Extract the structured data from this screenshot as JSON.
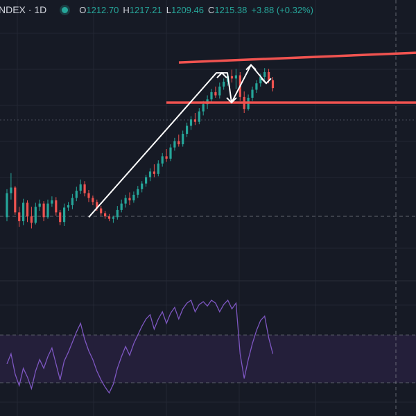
{
  "legend": {
    "symbol": "NDEX · 1D",
    "open_label": "O",
    "open": "1212.70",
    "high_label": "H",
    "high": "1217.21",
    "low_label": "L",
    "low": "1209.46",
    "close_label": "C",
    "close": "1215.38",
    "change": "+3.88 (+0.32%)"
  },
  "colors": {
    "background": "#161a25",
    "grid": "#232733",
    "up": "#26a69a",
    "down": "#ef5350",
    "trendline": "#ffffff",
    "levels": "#f05350",
    "oscillator": "#7e57c2",
    "oscillator_band": "#241f3a"
  },
  "chart_data": [
    {
      "type": "candlestick",
      "ohlc": [
        [
          1095,
          1130,
          1090,
          1125
        ],
        [
          1125,
          1150,
          1117,
          1132
        ],
        [
          1132,
          1134,
          1098,
          1101
        ],
        [
          1101,
          1108,
          1083,
          1090
        ],
        [
          1090,
          1118,
          1085,
          1113
        ],
        [
          1113,
          1116,
          1089,
          1096
        ],
        [
          1096,
          1108,
          1081,
          1088
        ],
        [
          1088,
          1113,
          1086,
          1108
        ],
        [
          1108,
          1117,
          1103,
          1112
        ],
        [
          1112,
          1115,
          1090,
          1095
        ],
        [
          1095,
          1117,
          1093,
          1112
        ],
        [
          1112,
          1121,
          1108,
          1116
        ],
        [
          1116,
          1120,
          1097,
          1101
        ],
        [
          1101,
          1104,
          1085,
          1089
        ],
        [
          1089,
          1112,
          1084,
          1107
        ],
        [
          1107,
          1114,
          1103,
          1110
        ],
        [
          1110,
          1124,
          1105,
          1119
        ],
        [
          1119,
          1133,
          1115,
          1128
        ],
        [
          1128,
          1142,
          1124,
          1136
        ],
        [
          1136,
          1140,
          1121,
          1125
        ],
        [
          1125,
          1129,
          1114,
          1119
        ],
        [
          1119,
          1122,
          1110,
          1114
        ],
        [
          1114,
          1117,
          1103,
          1106
        ],
        [
          1106,
          1109,
          1097,
          1100
        ],
        [
          1100,
          1103,
          1093,
          1096
        ],
        [
          1096,
          1099,
          1090,
          1093
        ],
        [
          1093,
          1097,
          1088,
          1095
        ],
        [
          1095,
          1109,
          1092,
          1104
        ],
        [
          1104,
          1117,
          1101,
          1112
        ],
        [
          1112,
          1123,
          1107,
          1119
        ],
        [
          1119,
          1126,
          1110,
          1116
        ],
        [
          1116,
          1127,
          1113,
          1123
        ],
        [
          1123,
          1134,
          1119,
          1130
        ],
        [
          1130,
          1140,
          1126,
          1137
        ],
        [
          1137,
          1148,
          1133,
          1145
        ],
        [
          1145,
          1156,
          1140,
          1152
        ],
        [
          1152,
          1161,
          1145,
          1149
        ],
        [
          1149,
          1166,
          1146,
          1162
        ],
        [
          1162,
          1175,
          1158,
          1171
        ],
        [
          1171,
          1180,
          1164,
          1168
        ],
        [
          1168,
          1186,
          1165,
          1182
        ],
        [
          1182,
          1194,
          1178,
          1190
        ],
        [
          1190,
          1198,
          1183,
          1186
        ],
        [
          1186,
          1203,
          1183,
          1199
        ],
        [
          1199,
          1213,
          1195,
          1209
        ],
        [
          1209,
          1221,
          1204,
          1217
        ],
        [
          1217,
          1225,
          1210,
          1214
        ],
        [
          1214,
          1231,
          1211,
          1227
        ],
        [
          1227,
          1240,
          1222,
          1236
        ],
        [
          1236,
          1247,
          1230,
          1242
        ],
        [
          1242,
          1255,
          1237,
          1251
        ],
        [
          1251,
          1258,
          1244,
          1247
        ],
        [
          1247,
          1263,
          1243,
          1258
        ],
        [
          1258,
          1268,
          1254,
          1264
        ],
        [
          1264,
          1275,
          1259,
          1271
        ],
        [
          1271,
          1279,
          1263,
          1268
        ],
        [
          1268,
          1280,
          1255,
          1272
        ],
        [
          1272,
          1276,
          1240,
          1245
        ],
        [
          1245,
          1252,
          1225,
          1230
        ],
        [
          1230,
          1248,
          1228,
          1244
        ],
        [
          1244,
          1258,
          1240,
          1254
        ],
        [
          1254,
          1266,
          1250,
          1262
        ],
        [
          1262,
          1274,
          1258,
          1270
        ],
        [
          1270,
          1281,
          1266,
          1276
        ],
        [
          1276,
          1280,
          1262,
          1266
        ],
        [
          1266,
          1270,
          1252,
          1256
        ]
      ],
      "trend_levels": [
        1288,
        1238
      ],
      "ylim": [
        1020,
        1340
      ]
    },
    {
      "type": "line",
      "series": [
        {
          "values": [
            55,
            62,
            48,
            40,
            52,
            46,
            38,
            50,
            58,
            52,
            60,
            66,
            55,
            44,
            57,
            63,
            70,
            77,
            83,
            72,
            64,
            58,
            50,
            44,
            39,
            35,
            41,
            52,
            60,
            67,
            61,
            69,
            75,
            81,
            86,
            89,
            79,
            86,
            91,
            83,
            90,
            94,
            86,
            93,
            97,
            99,
            91,
            96,
            98,
            95,
            99,
            97,
            91,
            96,
            99,
            93,
            97,
            62,
            45,
            58,
            69,
            78,
            85,
            88,
            73,
            62
          ]
        }
      ],
      "ylim": [
        20,
        110
      ],
      "band": [
        42,
        75
      ]
    }
  ]
}
